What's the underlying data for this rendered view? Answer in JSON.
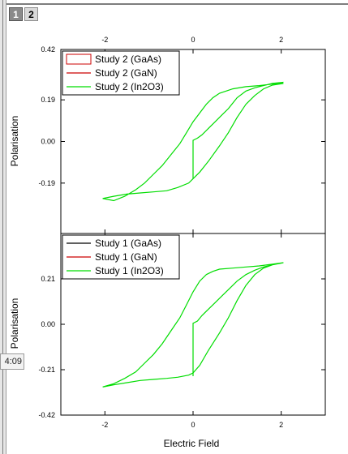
{
  "window": {
    "layer_tabs": [
      "1",
      "2"
    ],
    "timer_text": "4:09"
  },
  "colors": {
    "gaas": "#000000",
    "gan": "#cc0000",
    "in2o3": "#00dd00",
    "tab_active_bg": "#8a8a8a"
  },
  "chart_data": [
    {
      "type": "line",
      "panel": "top",
      "title": "",
      "xlabel": "",
      "ylabel": "Polarisation",
      "xlim": [
        -3,
        3
      ],
      "ylim": [
        -0.42,
        0.42
      ],
      "top_axis_ticks": [
        "-2",
        "0",
        "2"
      ],
      "top_axis_tick_values": [
        -2,
        0,
        2
      ],
      "y_ticks": [
        "0.19",
        "0.00",
        "-0.19",
        "0.42"
      ],
      "y_tick_values": [
        0.19,
        0.0,
        -0.19,
        0.42
      ],
      "legend": {
        "position": "top-left",
        "entries": [
          "Study 2 (GaAs)",
          "Study 2 (GaN)",
          "Study 2 (In2O3)"
        ]
      },
      "series": [
        {
          "name": "Study 2 (In2O3)",
          "color": "#00dd00",
          "x": [
            0.0,
            0.0,
            0.1,
            0.2,
            0.35,
            0.5,
            0.65,
            0.8,
            1.0,
            1.2,
            1.4,
            1.6,
            1.8,
            2.05,
            1.8,
            1.5,
            1.2,
            0.9,
            0.6,
            0.45,
            0.3,
            0.15,
            0.0,
            -0.15,
            -0.3,
            -0.5,
            -0.7,
            -0.9,
            -1.1,
            -1.3,
            -1.55,
            -1.8,
            -2.05,
            -1.8,
            -1.5,
            -1.2,
            -0.9,
            -0.6,
            -0.35,
            -0.1,
            0.0,
            0.15,
            0.35,
            0.6,
            0.8,
            1.0,
            1.2,
            1.4,
            1.6,
            1.8,
            2.05
          ],
          "y": [
            0.0,
            0.005,
            0.015,
            0.03,
            0.06,
            0.09,
            0.12,
            0.15,
            0.2,
            0.23,
            0.245,
            0.255,
            0.265,
            0.27,
            0.262,
            0.255,
            0.25,
            0.24,
            0.22,
            0.2,
            0.17,
            0.13,
            0.09,
            0.04,
            -0.01,
            -0.06,
            -0.11,
            -0.15,
            -0.19,
            -0.22,
            -0.25,
            -0.27,
            -0.26,
            -0.25,
            -0.24,
            -0.235,
            -0.23,
            -0.225,
            -0.21,
            -0.19,
            -0.17,
            -0.14,
            -0.09,
            -0.02,
            0.04,
            0.11,
            0.17,
            0.21,
            0.24,
            0.257,
            0.265
          ]
        }
      ],
      "vertical_segment": {
        "x": 0.0,
        "y_from": 0.0,
        "y_to": -0.17
      }
    },
    {
      "type": "line",
      "panel": "bottom",
      "title": "",
      "xlabel": "Electric Field",
      "ylabel": "Polarisation",
      "xlim": [
        -3,
        3
      ],
      "ylim": [
        -0.42,
        0.42
      ],
      "x_ticks": [
        "-2",
        "0",
        "2"
      ],
      "x_tick_values": [
        -2,
        0,
        2
      ],
      "y_ticks": [
        "0.21",
        "0.00",
        "-0.21",
        "-0.42"
      ],
      "y_tick_values": [
        0.21,
        0.0,
        -0.21,
        -0.42
      ],
      "legend": {
        "position": "top-left",
        "entries": [
          "Study 1 (GaAs)",
          "Study 1 (GaN)",
          "Study 1 (In2O3)"
        ]
      },
      "series": [
        {
          "name": "Study 1 (In2O3)",
          "color": "#00dd00",
          "x": [
            0.0,
            0.0,
            0.1,
            0.2,
            0.35,
            0.5,
            0.65,
            0.8,
            1.0,
            1.2,
            1.4,
            1.6,
            1.8,
            2.05,
            1.8,
            1.5,
            1.2,
            0.9,
            0.6,
            0.45,
            0.3,
            0.15,
            0.0,
            -0.15,
            -0.3,
            -0.5,
            -0.7,
            -0.9,
            -1.1,
            -1.3,
            -1.55,
            -1.8,
            -2.05,
            -1.8,
            -1.5,
            -1.2,
            -0.9,
            -0.6,
            -0.35,
            -0.1,
            0.0,
            0.15,
            0.35,
            0.6,
            0.8,
            1.0,
            1.2,
            1.4,
            1.6,
            1.8,
            2.05
          ],
          "y": [
            0.0,
            0.005,
            0.015,
            0.04,
            0.07,
            0.1,
            0.13,
            0.16,
            0.2,
            0.23,
            0.25,
            0.265,
            0.275,
            0.285,
            0.278,
            0.27,
            0.265,
            0.26,
            0.255,
            0.245,
            0.23,
            0.2,
            0.15,
            0.09,
            0.03,
            -0.03,
            -0.09,
            -0.14,
            -0.18,
            -0.22,
            -0.25,
            -0.275,
            -0.29,
            -0.28,
            -0.27,
            -0.26,
            -0.255,
            -0.25,
            -0.245,
            -0.235,
            -0.225,
            -0.19,
            -0.12,
            -0.04,
            0.03,
            0.11,
            0.18,
            0.23,
            0.26,
            0.275,
            0.285
          ]
        }
      ],
      "vertical_segment": {
        "x": 0.0,
        "y_from": 0.0,
        "y_to": -0.24
      }
    }
  ]
}
